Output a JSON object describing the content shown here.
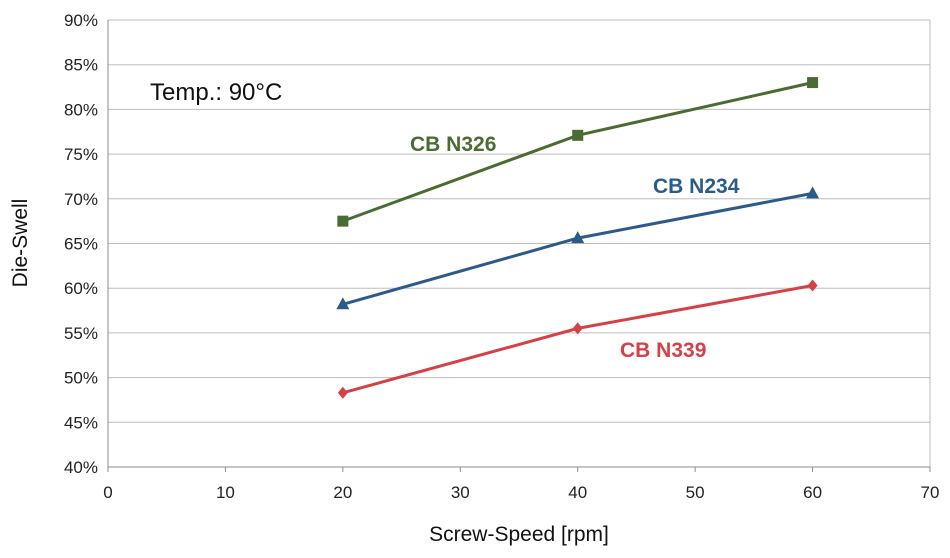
{
  "chart_data": {
    "type": "line",
    "title": "",
    "xlabel": "Screw-Speed [rpm]",
    "ylabel": "Die-Swell",
    "xlim": [
      0,
      70
    ],
    "ylim": [
      40,
      90
    ],
    "x_ticks": [
      "0",
      "10",
      "20",
      "30",
      "40",
      "50",
      "60",
      "70"
    ],
    "y_ticks": [
      "40%",
      "45%",
      "50%",
      "55%",
      "60%",
      "65%",
      "70%",
      "75%",
      "80%",
      "85%",
      "90%"
    ],
    "grid": true,
    "legend": "none (inline series labels)",
    "annotation": "Temp.: 90°C",
    "series": [
      {
        "name": "CB N326",
        "color": "#4a6b32",
        "marker": "square",
        "x": [
          20,
          40,
          60
        ],
        "y": [
          67.5,
          77.1,
          83.0
        ]
      },
      {
        "name": "CB N234",
        "color": "#2b5b8a",
        "marker": "triangle",
        "x": [
          20,
          40,
          60
        ],
        "y": [
          58.2,
          65.6,
          70.6
        ]
      },
      {
        "name": "CB N339",
        "color": "#d44147",
        "marker": "diamond",
        "x": [
          20,
          40,
          60
        ],
        "y": [
          48.3,
          55.5,
          60.3
        ]
      }
    ]
  }
}
